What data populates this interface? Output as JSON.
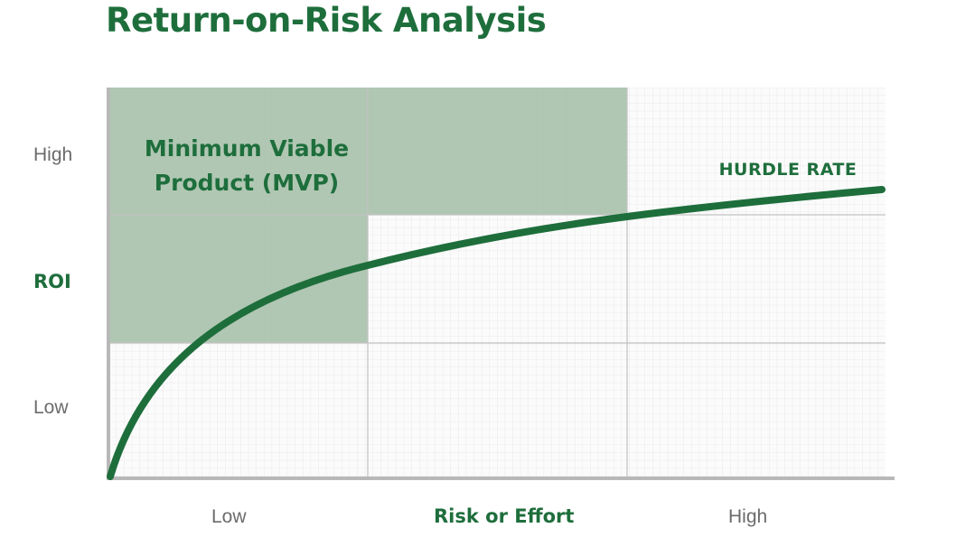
{
  "title": "Return-on-Risk Analysis",
  "y_axis": {
    "label": "ROI",
    "high": "High",
    "low": "Low"
  },
  "x_axis": {
    "label": "Risk or Effort",
    "low": "Low",
    "high": "High"
  },
  "regions": {
    "mvp_label_line1": "Minimum Viable",
    "mvp_label_line2": "Product (MVP)"
  },
  "curve": {
    "label": "HURDLE RATE"
  },
  "colors": {
    "accent": "#1e6e3c",
    "shade": "#a9c2ad",
    "grid_major": "#c2c2c2",
    "grid_minor": "#e8e8e8",
    "tick_text": "#6b6b6b"
  }
}
